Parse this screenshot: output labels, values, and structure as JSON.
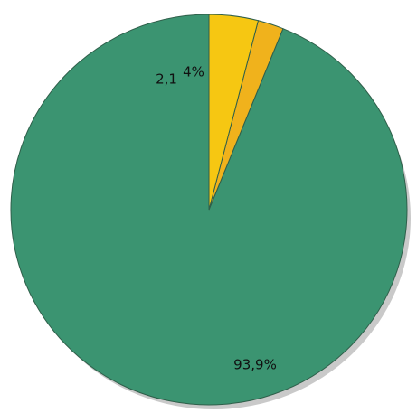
{
  "chart_data": {
    "type": "pie",
    "title": "",
    "start_angle_deg": 0,
    "direction": "counterclockwise",
    "slices": [
      {
        "label": "93,9%",
        "value": 93.9,
        "color": "#3b9471"
      },
      {
        "label": "2,1",
        "value": 2.1,
        "color": "#f0b21c"
      },
      {
        "label": "4%",
        "value": 4.0,
        "color": "#f6c712"
      }
    ]
  }
}
